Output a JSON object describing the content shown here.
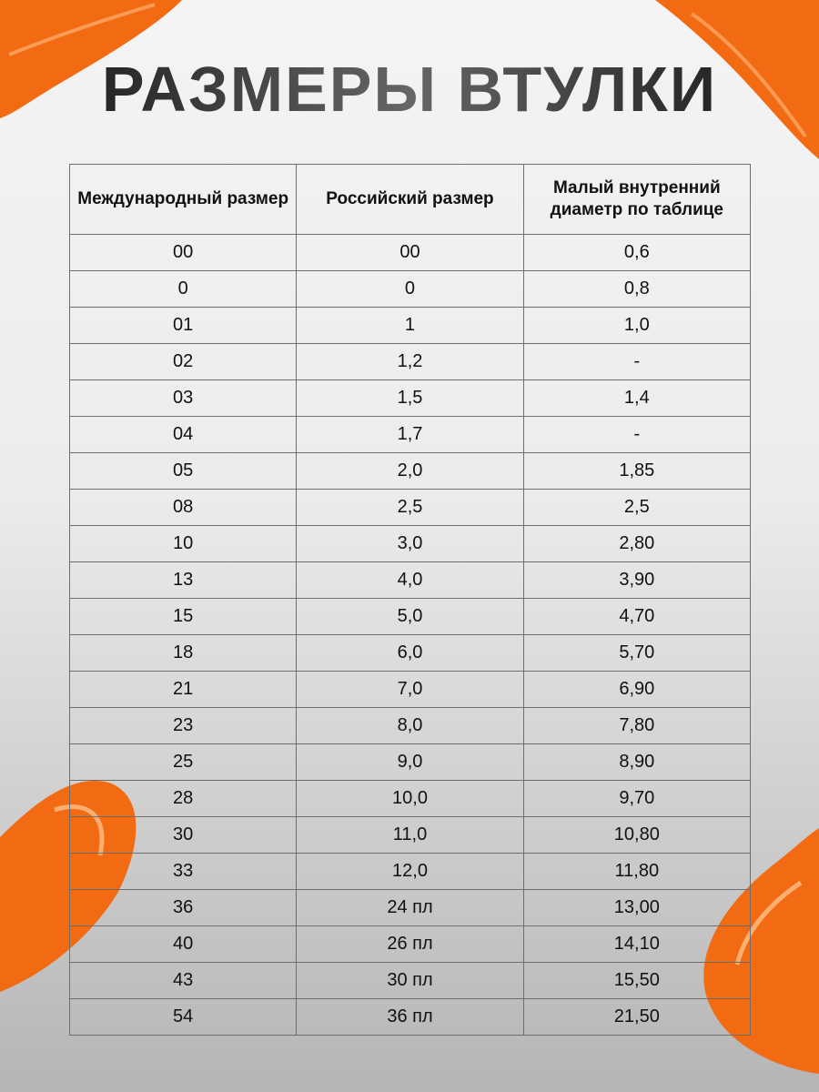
{
  "title": "РАЗМЕРЫ ВТУЛКИ",
  "accent_color": "#f26a12",
  "table": {
    "headers": [
      "Международный размер",
      "Российский размер",
      "Малый внутренний диаметр по таблице"
    ],
    "rows": [
      [
        "00",
        "00",
        "0,6"
      ],
      [
        "0",
        "0",
        "0,8"
      ],
      [
        "01",
        "1",
        "1,0"
      ],
      [
        "02",
        "1,2",
        "-"
      ],
      [
        "03",
        "1,5",
        "1,4"
      ],
      [
        "04",
        "1,7",
        "-"
      ],
      [
        "05",
        "2,0",
        "1,85"
      ],
      [
        "08",
        "2,5",
        "2,5"
      ],
      [
        "10",
        "3,0",
        "2,80"
      ],
      [
        "13",
        "4,0",
        "3,90"
      ],
      [
        "15",
        "5,0",
        "4,70"
      ],
      [
        "18",
        "6,0",
        "5,70"
      ],
      [
        "21",
        "7,0",
        "6,90"
      ],
      [
        "23",
        "8,0",
        "7,80"
      ],
      [
        "25",
        "9,0",
        "8,90"
      ],
      [
        "28",
        "10,0",
        "9,70"
      ],
      [
        "30",
        "11,0",
        "10,80"
      ],
      [
        "33",
        "12,0",
        "11,80"
      ],
      [
        "36",
        "24 пл",
        "13,00"
      ],
      [
        "40",
        "26 пл",
        "14,10"
      ],
      [
        "43",
        "30 пл",
        "15,50"
      ],
      [
        "54",
        "36 пл",
        "21,50"
      ]
    ]
  }
}
